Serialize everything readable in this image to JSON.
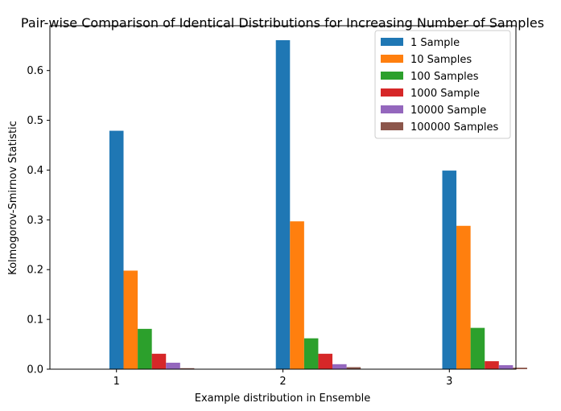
{
  "chart_data": {
    "type": "bar",
    "title": "Pair-wise Comparison of Identical Distributions for Increasing Number of Samples",
    "xlabel": "Example distribution in Ensemble",
    "ylabel": "Kolmogorov-Smirnov Statistic",
    "categories": [
      "1",
      "2",
      "3"
    ],
    "ylim": [
      0,
      0.69
    ],
    "yticks": [
      "0.0",
      "0.1",
      "0.2",
      "0.3",
      "0.4",
      "0.5",
      "0.6"
    ],
    "grid": false,
    "legend_position": "top-right",
    "series": [
      {
        "name": "1 Sample",
        "color": "#1f77b4",
        "values": [
          0.479,
          0.661,
          0.399
        ]
      },
      {
        "name": "10 Samples",
        "color": "#ff7f0e",
        "values": [
          0.198,
          0.297,
          0.288
        ]
      },
      {
        "name": "100 Samples",
        "color": "#2ca02c",
        "values": [
          0.081,
          0.062,
          0.083
        ]
      },
      {
        "name": "1000 Sample",
        "color": "#d62728",
        "values": [
          0.031,
          0.031,
          0.016
        ]
      },
      {
        "name": "10000 Sample",
        "color": "#9467bd",
        "values": [
          0.013,
          0.01,
          0.008
        ]
      },
      {
        "name": "100000 Samples",
        "color": "#8c564b",
        "values": [
          0.002,
          0.004,
          0.003
        ]
      }
    ]
  }
}
